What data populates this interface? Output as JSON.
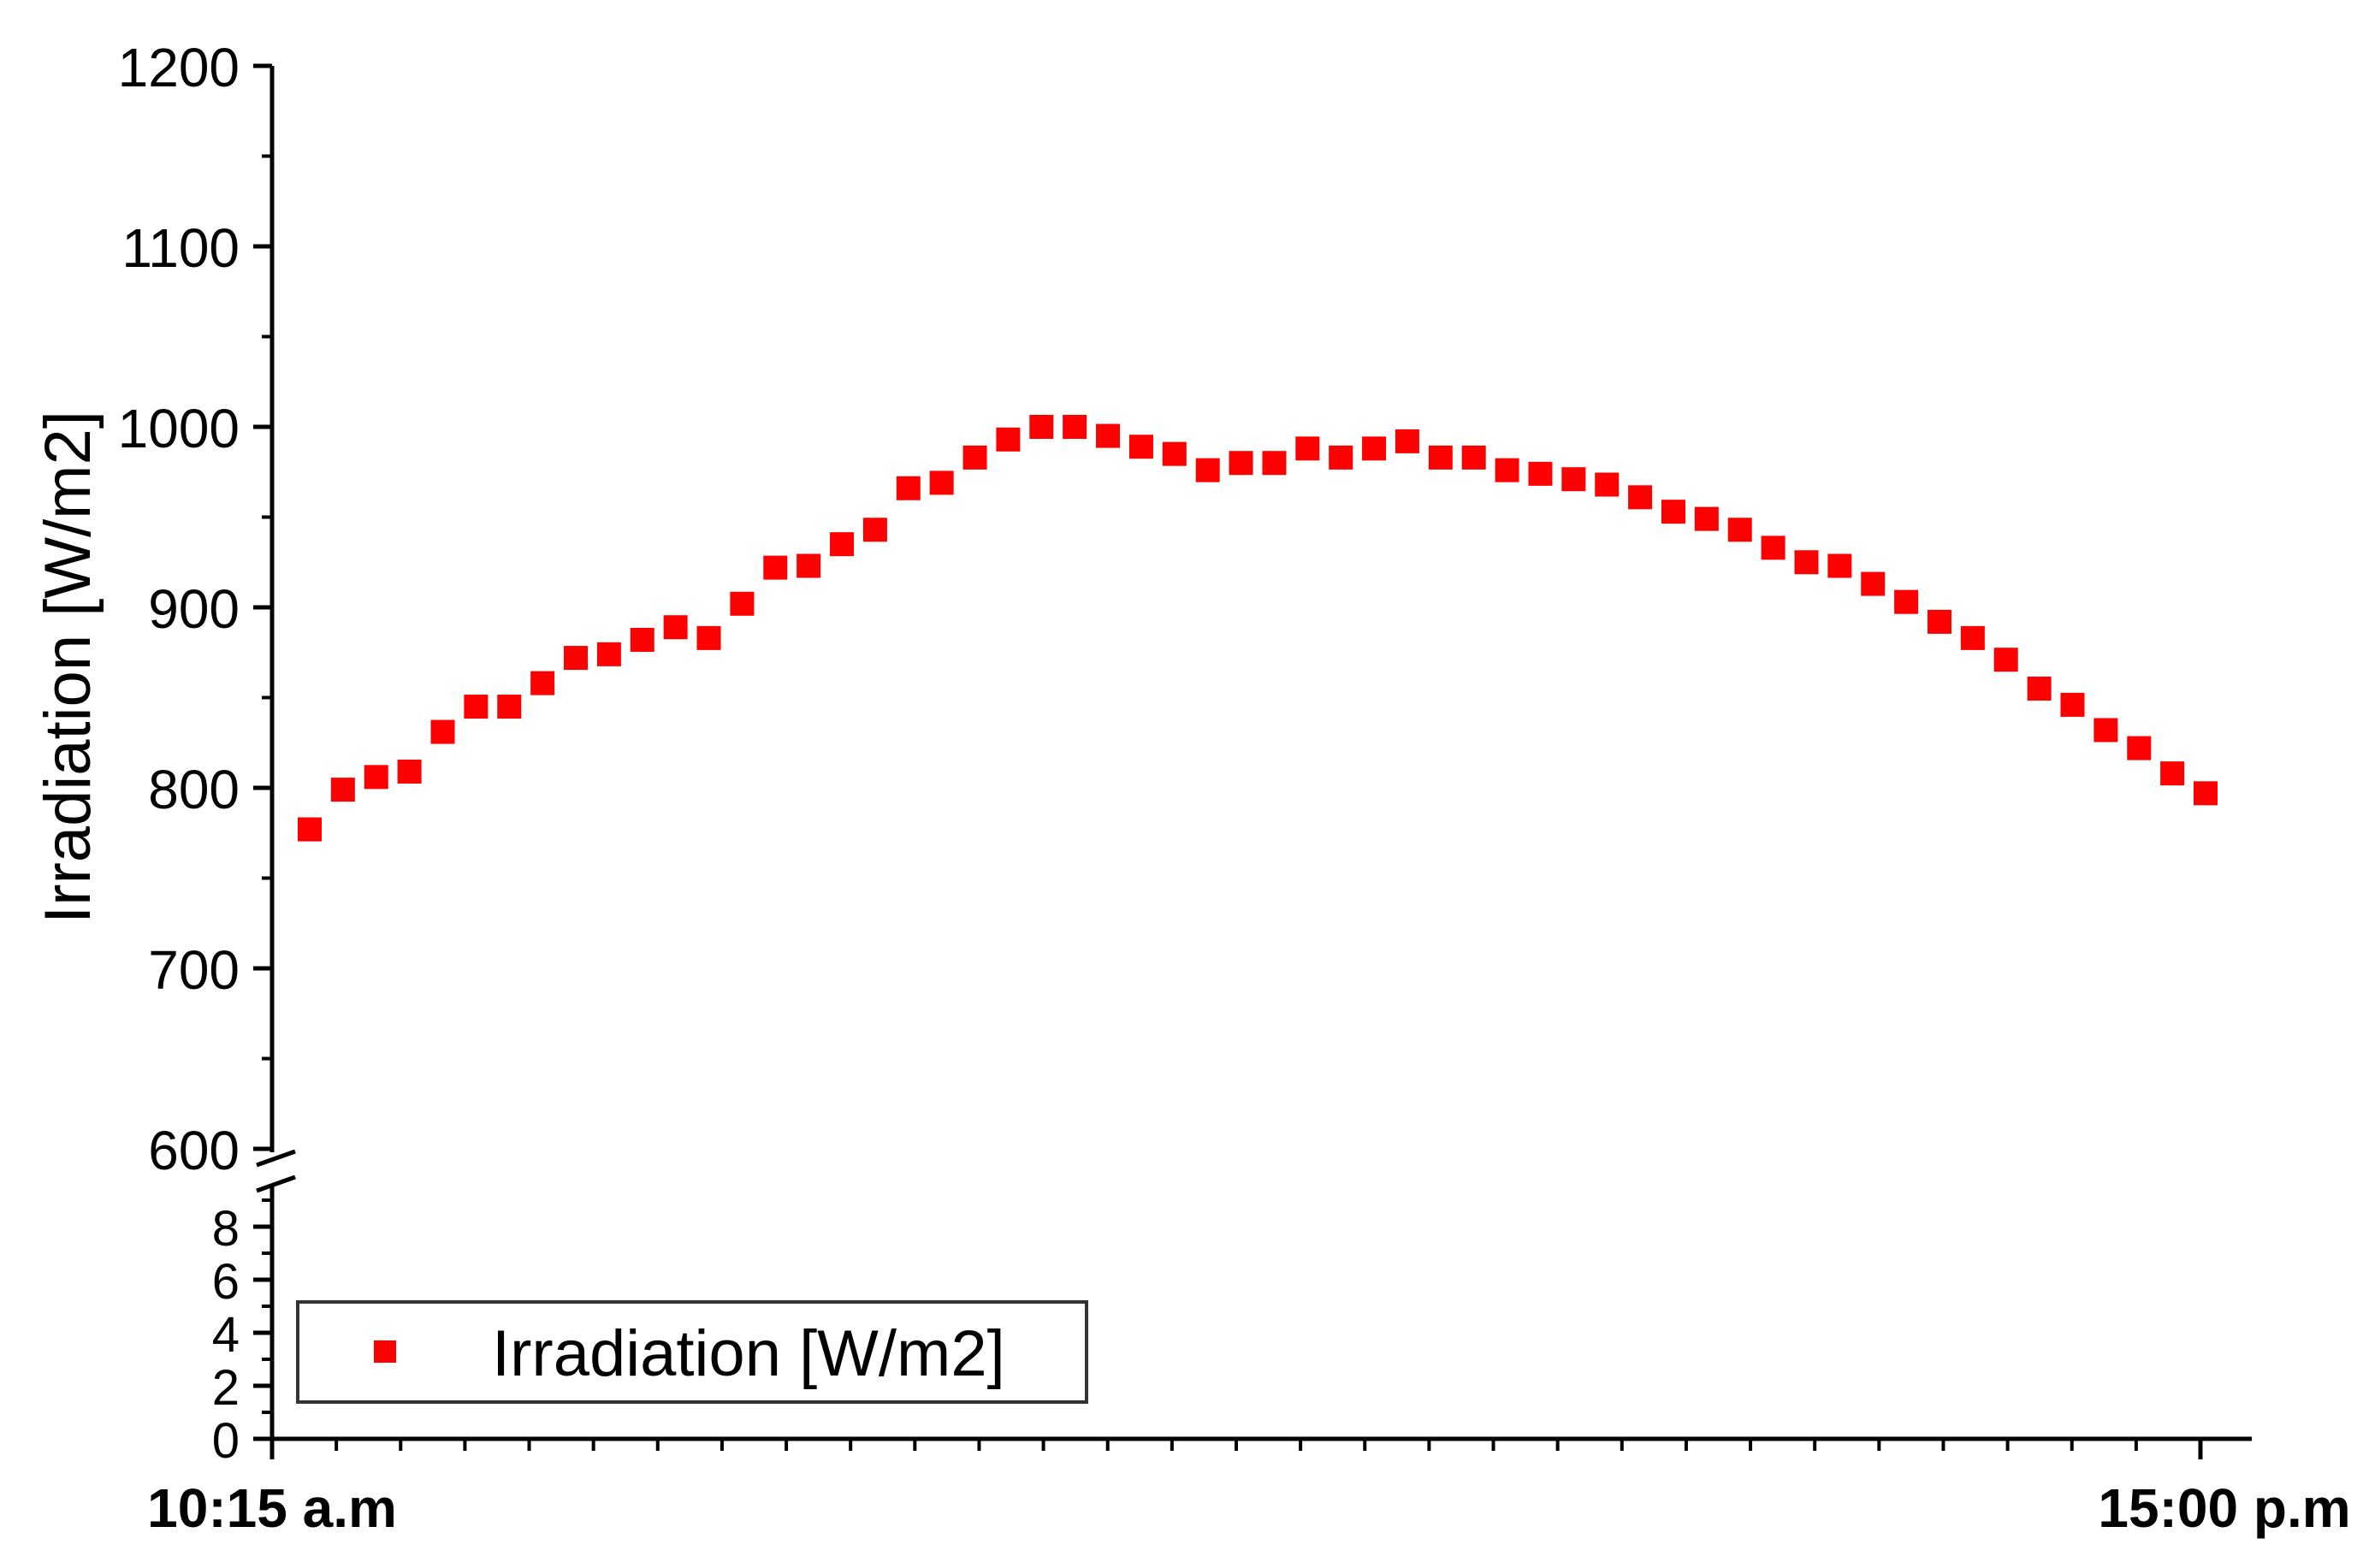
{
  "chart_data": {
    "type": "scatter",
    "title": "",
    "xlabel": "",
    "ylabel": "Irradiation [W/m2]",
    "x_tick_labels": [
      "10:15 a.m",
      "15:00 p.m"
    ],
    "y_axis_break": true,
    "upper_ylim": [
      600,
      1200
    ],
    "upper_yticks": [
      "600",
      "700",
      "800",
      "900",
      "1000",
      "1100",
      "1200"
    ],
    "lower_ylim": [
      0,
      9
    ],
    "lower_yticks": [
      "0",
      "2",
      "4",
      "6",
      "8"
    ],
    "marker_color": "#ff0000",
    "legend": {
      "label": "Irradiation [W/m2]",
      "placement": "bottom-left"
    },
    "series": [
      {
        "name": "Irradiation [W/m2]",
        "values": [
          777,
          799,
          806,
          809,
          831,
          845,
          845,
          858,
          872,
          874,
          882,
          889,
          883,
          902,
          922,
          923,
          935,
          943,
          966,
          969,
          983,
          993,
          1000,
          1000,
          995,
          989,
          985,
          976,
          980,
          980,
          988,
          983,
          988,
          992,
          983,
          983,
          976,
          974,
          971,
          968,
          961,
          953,
          949,
          943,
          933,
          925,
          923,
          913,
          903,
          892,
          883,
          871,
          855,
          846,
          832,
          822,
          808,
          797
        ]
      }
    ]
  }
}
